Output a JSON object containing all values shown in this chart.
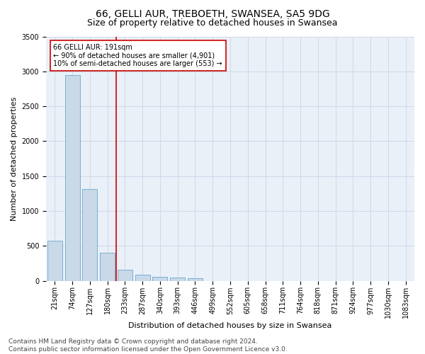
{
  "title": "66, GELLI AUR, TREBOETH, SWANSEA, SA5 9DG",
  "subtitle": "Size of property relative to detached houses in Swansea",
  "xlabel": "Distribution of detached houses by size in Swansea",
  "ylabel": "Number of detached properties",
  "categories": [
    "21sqm",
    "74sqm",
    "127sqm",
    "180sqm",
    "233sqm",
    "287sqm",
    "340sqm",
    "393sqm",
    "446sqm",
    "499sqm",
    "552sqm",
    "605sqm",
    "658sqm",
    "711sqm",
    "764sqm",
    "818sqm",
    "871sqm",
    "924sqm",
    "977sqm",
    "1030sqm",
    "1083sqm"
  ],
  "values": [
    570,
    2950,
    1310,
    400,
    160,
    90,
    60,
    50,
    40,
    0,
    0,
    0,
    0,
    0,
    0,
    0,
    0,
    0,
    0,
    0,
    0
  ],
  "bar_color": "#c9d9e8",
  "bar_edge_color": "#7bafd4",
  "grid_color": "#d0d8e8",
  "background_color": "#eaf0f8",
  "vline_x": 3.5,
  "vline_color": "#cc0000",
  "annotation_text": "66 GELLI AUR: 191sqm\n← 90% of detached houses are smaller (4,901)\n10% of semi-detached houses are larger (553) →",
  "annotation_box_color": "#ffffff",
  "annotation_box_edge": "#cc0000",
  "ylim": [
    0,
    3500
  ],
  "yticks": [
    0,
    500,
    1000,
    1500,
    2000,
    2500,
    3000,
    3500
  ],
  "footer": "Contains HM Land Registry data © Crown copyright and database right 2024.\nContains public sector information licensed under the Open Government Licence v3.0.",
  "title_fontsize": 10,
  "subtitle_fontsize": 9,
  "axis_label_fontsize": 8,
  "tick_fontsize": 7,
  "annotation_fontsize": 7,
  "footer_fontsize": 6.5
}
